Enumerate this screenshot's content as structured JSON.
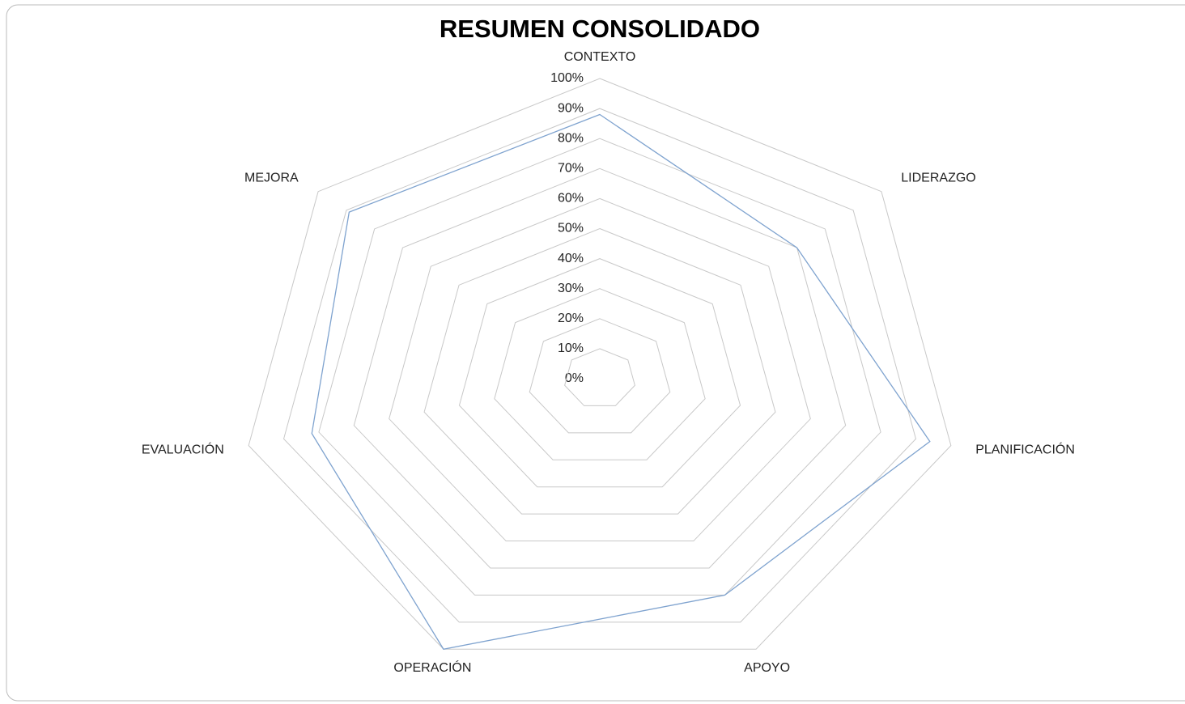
{
  "chart_data": {
    "type": "radar",
    "title": "RESUMEN CONSOLIDADO",
    "categories": [
      "CONTEXTO",
      "LIDERAZGO",
      "PLANIFICACIÓN",
      "APOYO",
      "OPERACIÓN",
      "EVALUACIÓN",
      "MEJORA"
    ],
    "values": [
      88,
      70,
      94,
      80,
      100,
      82,
      89
    ],
    "color": "#7fa3cf",
    "ylim": [
      0,
      100
    ],
    "yticks": [
      {
        "value": 0,
        "label": "0%"
      },
      {
        "value": 10,
        "label": "10%"
      },
      {
        "value": 20,
        "label": "20%"
      },
      {
        "value": 30,
        "label": "30%"
      },
      {
        "value": 40,
        "label": "40%"
      },
      {
        "value": 50,
        "label": "50%"
      },
      {
        "value": 60,
        "label": "60%"
      },
      {
        "value": 70,
        "label": "70%"
      },
      {
        "value": 80,
        "label": "80%"
      },
      {
        "value": 90,
        "label": "90%"
      },
      {
        "value": 100,
        "label": "100%"
      }
    ],
    "grid": true
  }
}
